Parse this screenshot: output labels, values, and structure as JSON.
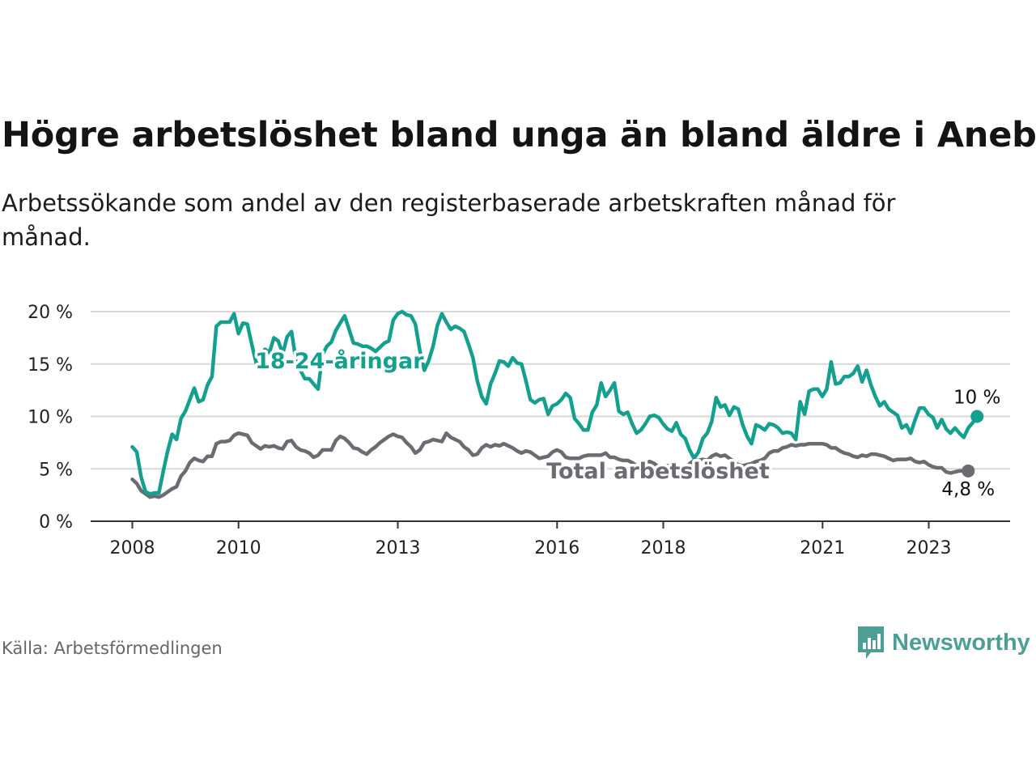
{
  "title": "Högre arbetslöshet bland unga än bland äldre i Aneby",
  "subtitle": "Arbetssökande som andel av den registerbaserade arbetskraften månad för månad.",
  "source": "Källa: Arbetsförmedlingen",
  "brand": {
    "name": "Newsworthy",
    "icon": "newsworthy-logo-icon",
    "color": "#4d9f96"
  },
  "colors": {
    "youth": "#14a08f",
    "total": "#6b6b72",
    "grid": "#d8d8d8",
    "axis": "#333333"
  },
  "chart_data": {
    "type": "line",
    "title": "Högre arbetslöshet bland unga än bland äldre i Aneby",
    "xlabel": "",
    "ylabel": "",
    "xlim": [
      2008.0,
      2024.0
    ],
    "ylim": [
      0,
      20
    ],
    "grid": true,
    "y_ticks": [
      0,
      5,
      10,
      15,
      20
    ],
    "y_tick_labels": [
      "0 %",
      "5 %",
      "10 %",
      "15 %",
      "20 %"
    ],
    "x_ticks": [
      2008,
      2010,
      2013,
      2016,
      2018,
      2021,
      2023
    ],
    "x_tick_labels": [
      "2008",
      "2010",
      "2013",
      "2016",
      "2018",
      "2021",
      "2023"
    ],
    "series": [
      {
        "name": "18-24-åringar",
        "label": "18-24-åringar",
        "end_label": "10 %",
        "label_at": [
          2011.9,
          15.3
        ],
        "x_start": 2008.0,
        "step": 0.0833,
        "values": [
          7.1,
          6.6,
          4.2,
          2.8,
          2.6,
          2.7,
          2.7,
          4.8,
          6.7,
          8.3,
          7.8,
          9.8,
          10.5,
          11.6,
          12.7,
          11.4,
          11.6,
          13.0,
          13.8,
          18.6,
          19.0,
          19.0,
          19.0,
          19.8,
          17.9,
          18.9,
          18.8,
          16.9,
          15.1,
          15.0,
          16.4,
          16.1,
          17.5,
          17.2,
          16.0,
          17.6,
          18.1,
          15.3,
          14.4,
          13.6,
          13.6,
          13.1,
          12.6,
          15.9,
          16.7,
          17.1,
          18.2,
          18.9,
          19.6,
          18.3,
          17.0,
          16.9,
          16.7,
          16.7,
          16.5,
          16.2,
          16.6,
          17.0,
          17.2,
          19.2,
          19.8,
          20.0,
          19.7,
          19.6,
          18.8,
          16.3,
          14.4,
          15.3,
          16.7,
          18.7,
          19.8,
          19.0,
          18.3,
          18.6,
          18.4,
          18.1,
          16.9,
          15.6,
          13.4,
          11.9,
          11.2,
          13.1,
          14.1,
          15.3,
          15.2,
          14.8,
          15.6,
          15.1,
          15.0,
          13.4,
          11.6,
          11.3,
          11.6,
          11.7,
          10.2,
          11.0,
          11.2,
          11.6,
          12.2,
          11.8,
          9.8,
          9.3,
          8.7,
          8.7,
          10.4,
          11.1,
          13.2,
          11.9,
          12.5,
          13.2,
          10.5,
          10.2,
          10.4,
          9.3,
          8.4,
          8.7,
          9.3,
          10.0,
          10.1,
          9.9,
          9.3,
          8.8,
          8.6,
          9.4,
          8.3,
          7.9,
          6.8,
          6.0,
          6.6,
          7.9,
          8.4,
          9.5,
          11.8,
          10.9,
          11.1,
          10.1,
          10.9,
          10.7,
          9.2,
          8.1,
          7.4,
          9.2,
          9.0,
          8.7,
          9.3,
          9.2,
          8.9,
          8.4,
          8.5,
          8.4,
          7.8,
          11.4,
          10.2,
          12.4,
          12.6,
          12.6,
          11.9,
          12.6,
          15.2,
          13.1,
          13.2,
          13.8,
          13.8,
          14.1,
          14.8,
          13.3,
          14.4,
          13.0,
          11.9,
          11.0,
          11.4,
          10.7,
          10.4,
          10.1,
          8.9,
          9.2,
          8.4,
          9.7,
          10.8,
          10.8,
          10.2,
          9.9,
          8.9,
          9.7,
          8.8,
          8.4,
          8.9,
          8.4,
          8.0,
          8.9,
          9.4,
          10.0
        ]
      },
      {
        "name": "Total arbetslöshet",
        "label": "Total arbetslöshet",
        "end_label": "4,8 %",
        "label_at": [
          2017.9,
          4.8
        ],
        "x_start": 2008.0,
        "step": 0.0833,
        "values": [
          4.0,
          3.6,
          2.9,
          2.6,
          2.3,
          2.4,
          2.3,
          2.5,
          2.8,
          3.1,
          3.3,
          4.3,
          4.8,
          5.6,
          6.0,
          5.8,
          5.7,
          6.2,
          6.2,
          7.4,
          7.6,
          7.6,
          7.7,
          8.2,
          8.4,
          8.3,
          8.2,
          7.5,
          7.2,
          6.9,
          7.2,
          7.1,
          7.2,
          7.0,
          6.9,
          7.6,
          7.7,
          7.1,
          6.8,
          6.7,
          6.5,
          6.1,
          6.3,
          6.8,
          6.8,
          6.8,
          7.7,
          8.1,
          7.9,
          7.5,
          7.0,
          6.9,
          6.6,
          6.4,
          6.8,
          7.1,
          7.5,
          7.8,
          8.1,
          8.3,
          8.1,
          8.0,
          7.5,
          7.1,
          6.5,
          6.8,
          7.5,
          7.6,
          7.8,
          7.7,
          7.6,
          8.4,
          8.0,
          7.8,
          7.6,
          7.1,
          6.8,
          6.3,
          6.4,
          7.0,
          7.3,
          7.1,
          7.3,
          7.2,
          7.4,
          7.2,
          7.0,
          6.7,
          6.5,
          6.7,
          6.6,
          6.3,
          6.0,
          6.1,
          6.2,
          6.6,
          6.8,
          6.6,
          6.1,
          6.0,
          6.0,
          6.0,
          6.2,
          6.3,
          6.3,
          6.3,
          6.3,
          6.5,
          6.1,
          6.1,
          5.9,
          5.8,
          5.8,
          5.6,
          5.3,
          5.4,
          5.5,
          5.7,
          5.5,
          5.2,
          5.0,
          5.3,
          5.3,
          4.9,
          4.7,
          5.0,
          5.5,
          5.8,
          5.8,
          5.9,
          5.8,
          6.2,
          6.4,
          6.2,
          6.3,
          6.0,
          5.7,
          5.4,
          5.3,
          5.4,
          5.5,
          5.7,
          5.8,
          6.0,
          6.5,
          6.7,
          6.7,
          7.0,
          7.1,
          7.3,
          7.2,
          7.3,
          7.3,
          7.4,
          7.4,
          7.4,
          7.4,
          7.3,
          7.0,
          7.0,
          6.7,
          6.5,
          6.4,
          6.2,
          6.1,
          6.3,
          6.2,
          6.4,
          6.4,
          6.3,
          6.2,
          6.0,
          5.8,
          5.9,
          5.9,
          5.9,
          6.0,
          5.7,
          5.6,
          5.7,
          5.4,
          5.2,
          5.1,
          5.1,
          4.7,
          4.6,
          4.7,
          4.8,
          4.8,
          4.8
        ]
      }
    ]
  }
}
